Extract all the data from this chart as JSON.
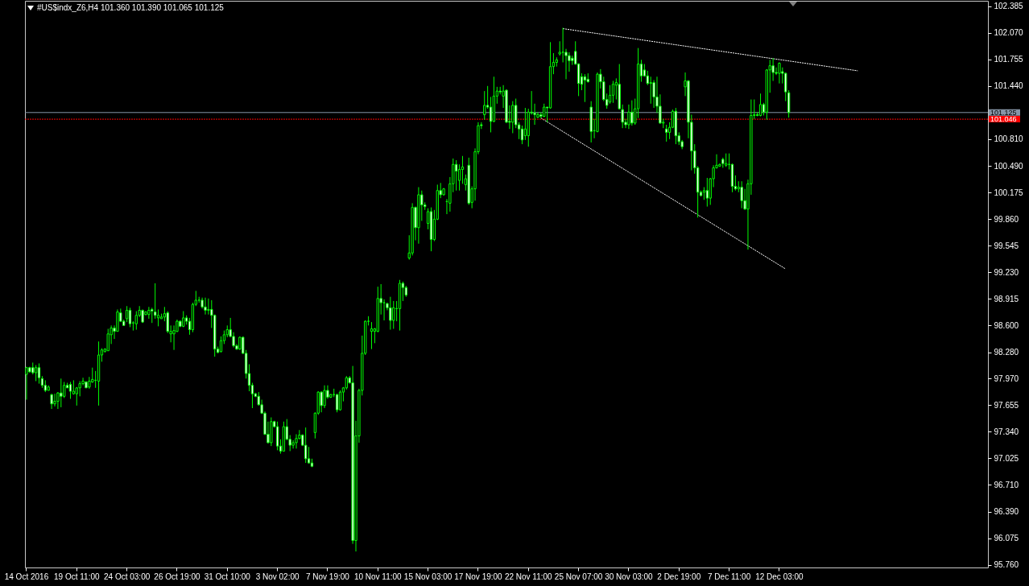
{
  "chart_data": {
    "type": "candlestick",
    "title": "#US$indx_Z6,H4  101.360 101.390 101.065 101.125",
    "color": "#00ff00",
    "categories": [
      "14 Oct 2016",
      null,
      null,
      null,
      null,
      null,
      null,
      null,
      null,
      null,
      null,
      null,
      null,
      null,
      null,
      null,
      "19 Oct 11:00",
      null,
      null,
      null,
      null,
      null,
      null,
      null,
      null,
      null,
      null,
      null,
      null,
      null,
      null,
      null,
      "24 Oct 03:00",
      null,
      null,
      null,
      null,
      null,
      null,
      null,
      null,
      null,
      null,
      null,
      null,
      null,
      null,
      null,
      "26 Oct 19:00",
      null,
      null,
      null,
      null,
      null,
      null,
      null,
      null,
      null,
      null,
      null,
      null,
      null,
      null,
      null,
      "31 Oct 10:00",
      null,
      null,
      null,
      null,
      null,
      null,
      null,
      null,
      null,
      null,
      null,
      null,
      null,
      null,
      null,
      "3 Nov 02:00",
      null,
      null,
      null,
      null,
      null,
      null,
      null,
      null,
      null,
      null,
      null,
      null,
      null,
      null,
      null,
      "7 Nov 19:00",
      null,
      null,
      null,
      null,
      null,
      null,
      null,
      null,
      null,
      null,
      null,
      null,
      null,
      null,
      null,
      "10 Nov 11:00",
      null,
      null,
      null,
      null,
      null,
      null,
      null,
      null,
      null,
      null,
      null,
      null,
      null,
      null,
      null,
      "15 Nov 03:00",
      null,
      null,
      null,
      null,
      null,
      null,
      null,
      null,
      null,
      null,
      null,
      null,
      null,
      null,
      null,
      "17 Nov 19:00",
      null,
      null,
      null,
      null,
      null,
      null,
      null,
      null,
      null,
      null,
      null,
      null,
      null,
      null,
      null,
      "22 Nov 11:00",
      null,
      null,
      null,
      null,
      null,
      null,
      null,
      null,
      null,
      null,
      null,
      null,
      null,
      null,
      null,
      "25 Nov 07:00",
      null,
      null,
      null,
      null,
      null,
      null,
      null,
      null,
      null,
      null,
      null,
      null,
      null,
      null,
      null,
      "30 Nov 03:00",
      null,
      null,
      null,
      null,
      null,
      null,
      null,
      null,
      null,
      null,
      null,
      null,
      null,
      null,
      null,
      "2 Dec 19:00",
      null,
      null,
      null,
      null,
      null,
      null,
      null,
      null,
      null,
      null,
      null,
      null,
      null,
      null,
      null,
      "7 Dec 11:00",
      null,
      null,
      null,
      null,
      null,
      null,
      null,
      null,
      null,
      null,
      null,
      null,
      null,
      null,
      null,
      "12 Dec 03:00",
      null,
      null,
      null,
      null,
      null,
      null,
      null,
      null,
      null,
      null,
      null,
      null,
      null,
      null,
      null,
      null,
      null,
      null,
      null,
      null,
      null,
      null,
      null,
      null,
      null,
      null,
      null,
      null,
      null,
      null,
      null,
      null,
      null,
      null,
      null,
      null,
      null,
      null,
      null,
      null,
      null,
      null,
      null,
      null,
      null,
      null,
      null,
      null,
      null,
      null,
      null,
      null,
      null,
      null,
      null,
      null,
      null,
      null,
      null,
      null,
      null,
      null,
      null,
      null,
      null,
      null
    ],
    "ohlc": [
      [
        98.02,
        98.11,
        97.72,
        98.1
      ],
      [
        98.1,
        98.11,
        98.04,
        98.05
      ],
      [
        98.1,
        98.16,
        98.02,
        98.04
      ],
      [
        98.04,
        98.13,
        97.94,
        98.1
      ],
      [
        98.1,
        98.15,
        97.91,
        97.98
      ],
      [
        97.97,
        98.0,
        97.86,
        97.89
      ],
      [
        97.89,
        97.95,
        97.81,
        97.83
      ],
      [
        97.83,
        97.89,
        97.83,
        97.87
      ],
      [
        97.78,
        97.79,
        97.61,
        97.67
      ],
      [
        97.67,
        97.79,
        97.64,
        97.7
      ],
      [
        97.7,
        97.81,
        97.61,
        97.8
      ],
      [
        97.8,
        97.97,
        97.63,
        97.76
      ],
      [
        97.76,
        97.93,
        97.74,
        97.89
      ],
      [
        97.89,
        97.92,
        97.86,
        97.86
      ],
      [
        97.9,
        97.93,
        97.73,
        97.82
      ],
      [
        97.79,
        97.95,
        97.78,
        97.82
      ],
      [
        97.79,
        97.87,
        97.65,
        97.86
      ],
      [
        97.86,
        97.94,
        97.76,
        97.91
      ],
      [
        97.91,
        97.98,
        97.89,
        97.94
      ],
      [
        97.93,
        97.94,
        97.86,
        97.86
      ],
      [
        97.87,
        97.99,
        97.85,
        97.94
      ],
      [
        97.93,
        98.1,
        97.92,
        97.96
      ],
      [
        97.95,
        98.06,
        97.86,
        97.95
      ],
      [
        97.94,
        98.41,
        97.65,
        98.25
      ],
      [
        98.25,
        98.33,
        98.17,
        98.31
      ],
      [
        98.29,
        98.33,
        98.28,
        98.32
      ],
      [
        98.3,
        98.56,
        98.3,
        98.5
      ],
      [
        98.49,
        98.6,
        98.38,
        98.57
      ],
      [
        98.57,
        98.6,
        98.44,
        98.53
      ],
      [
        98.53,
        98.79,
        98.53,
        98.76
      ],
      [
        98.75,
        98.8,
        98.64,
        98.65
      ],
      [
        98.65,
        98.67,
        98.6,
        98.6
      ],
      [
        98.68,
        98.83,
        98.64,
        98.78
      ],
      [
        98.78,
        98.81,
        98.58,
        98.62
      ],
      [
        98.63,
        98.65,
        98.54,
        98.63
      ],
      [
        98.62,
        98.77,
        98.55,
        98.72
      ],
      [
        98.72,
        98.83,
        98.7,
        98.78
      ],
      [
        98.78,
        98.79,
        98.63,
        98.64
      ],
      [
        98.73,
        98.77,
        98.72,
        98.76
      ],
      [
        98.73,
        98.82,
        98.68,
        98.78
      ],
      [
        98.79,
        98.81,
        98.63,
        98.77
      ],
      [
        98.76,
        99.1,
        98.68,
        98.72
      ],
      [
        98.69,
        98.79,
        98.59,
        98.72
      ],
      [
        98.68,
        98.74,
        98.68,
        98.7
      ],
      [
        98.7,
        98.82,
        98.65,
        98.74
      ],
      [
        98.75,
        98.77,
        98.51,
        98.53
      ],
      [
        98.5,
        98.6,
        98.4,
        98.53
      ],
      [
        98.5,
        98.6,
        98.31,
        98.54
      ],
      [
        98.53,
        98.67,
        98.52,
        98.65
      ],
      [
        98.65,
        98.66,
        98.58,
        98.59
      ],
      [
        98.59,
        98.77,
        98.58,
        98.69
      ],
      [
        98.69,
        98.72,
        98.61,
        98.65
      ],
      [
        98.65,
        98.69,
        98.49,
        98.55
      ],
      [
        98.55,
        98.87,
        98.52,
        98.85
      ],
      [
        98.85,
        99.01,
        98.83,
        98.9
      ],
      [
        98.9,
        98.94,
        98.87,
        98.9
      ],
      [
        98.9,
        98.93,
        98.8,
        98.82
      ],
      [
        98.82,
        98.93,
        98.73,
        98.78
      ],
      [
        98.78,
        98.92,
        98.73,
        98.79
      ],
      [
        98.79,
        98.9,
        98.57,
        98.72
      ],
      [
        98.72,
        98.73,
        98.23,
        98.32
      ],
      [
        98.32,
        98.35,
        98.27,
        98.28
      ],
      [
        98.29,
        98.47,
        98.28,
        98.42
      ],
      [
        98.42,
        98.54,
        98.38,
        98.49
      ],
      [
        98.49,
        98.6,
        98.46,
        98.55
      ],
      [
        98.55,
        98.69,
        98.46,
        98.47
      ],
      [
        98.47,
        98.52,
        98.34,
        98.36
      ],
      [
        98.36,
        98.38,
        98.31,
        98.32
      ],
      [
        98.32,
        98.47,
        98.31,
        98.46
      ],
      [
        98.46,
        98.47,
        98.26,
        98.27
      ],
      [
        98.27,
        98.31,
        97.97,
        98.03
      ],
      [
        98.03,
        98.14,
        97.82,
        97.89
      ],
      [
        97.89,
        97.92,
        97.62,
        97.79
      ],
      [
        97.79,
        97.8,
        97.75,
        97.76
      ],
      [
        97.76,
        97.81,
        97.65,
        97.66
      ],
      [
        97.66,
        97.72,
        97.55,
        97.56
      ],
      [
        97.56,
        97.58,
        97.3,
        97.31
      ],
      [
        97.31,
        97.46,
        97.2,
        97.21
      ],
      [
        97.21,
        97.51,
        97.17,
        97.46
      ],
      [
        97.46,
        97.47,
        97.39,
        97.4
      ],
      [
        97.4,
        97.46,
        97.12,
        97.17
      ],
      [
        97.17,
        97.25,
        97.08,
        97.11
      ],
      [
        97.11,
        97.46,
        97.11,
        97.4
      ],
      [
        97.4,
        97.49,
        97.24,
        97.25
      ],
      [
        97.25,
        97.3,
        97.11,
        97.18
      ],
      [
        97.18,
        97.24,
        97.14,
        97.21
      ],
      [
        97.21,
        97.31,
        97.14,
        97.26
      ],
      [
        97.26,
        97.36,
        97.25,
        97.3
      ],
      [
        97.3,
        97.31,
        97.17,
        97.18
      ],
      [
        97.18,
        97.39,
        96.97,
        97.02
      ],
      [
        97.02,
        97.16,
        96.96,
        96.97
      ],
      [
        96.97,
        97.02,
        96.92,
        96.93
      ],
      [
        97.33,
        97.57,
        97.26,
        97.56
      ],
      [
        97.56,
        97.82,
        97.54,
        97.81
      ],
      [
        97.81,
        97.82,
        97.57,
        97.65
      ],
      [
        97.65,
        97.89,
        97.62,
        97.83
      ],
      [
        97.83,
        97.89,
        97.73,
        97.75
      ],
      [
        97.75,
        97.79,
        97.74,
        97.78
      ],
      [
        97.78,
        97.85,
        97.75,
        97.78
      ],
      [
        97.78,
        97.79,
        97.57,
        97.6
      ],
      [
        97.6,
        97.83,
        97.59,
        97.81
      ],
      [
        97.81,
        97.87,
        97.7,
        97.86
      ],
      [
        97.86,
        98.0,
        97.84,
        97.98
      ],
      [
        97.98,
        98.0,
        97.91,
        97.92
      ],
      [
        97.92,
        98.12,
        96.01,
        96.05
      ],
      [
        96.05,
        97.47,
        95.92,
        97.29
      ],
      [
        97.29,
        97.85,
        97.21,
        97.83
      ],
      [
        97.83,
        98.48,
        97.77,
        98.27
      ],
      [
        98.27,
        98.66,
        98.25,
        98.65
      ],
      [
        98.65,
        98.71,
        98.6,
        98.65
      ],
      [
        98.53,
        98.64,
        98.32,
        98.56
      ],
      [
        98.53,
        98.57,
        98.39,
        98.56
      ],
      [
        98.53,
        99.06,
        98.52,
        98.92
      ],
      [
        98.92,
        99.09,
        98.73,
        98.87
      ],
      [
        98.87,
        98.91,
        98.66,
        98.87
      ],
      [
        98.86,
        98.87,
        98.78,
        98.81
      ],
      [
        98.81,
        98.94,
        98.55,
        98.66
      ],
      [
        98.66,
        98.89,
        98.56,
        98.81
      ],
      [
        98.8,
        98.89,
        98.65,
        98.8
      ],
      [
        98.8,
        99.14,
        98.54,
        99.1
      ],
      [
        99.1,
        99.12,
        98.89,
        99.05
      ],
      [
        99.05,
        99.07,
        98.94,
        98.96
      ],
      [
        99.4,
        99.67,
        99.38,
        99.46
      ],
      [
        99.46,
        100.05,
        99.43,
        100.0
      ],
      [
        100.0,
        100.01,
        99.61,
        99.76
      ],
      [
        99.76,
        100.24,
        99.57,
        100.15
      ],
      [
        100.15,
        100.2,
        99.84,
        100.03
      ],
      [
        100.03,
        100.06,
        99.97,
        100.01
      ],
      [
        99.81,
        99.99,
        99.74,
        99.95
      ],
      [
        99.95,
        100.0,
        99.48,
        99.62
      ],
      [
        99.62,
        99.97,
        99.6,
        99.86
      ],
      [
        99.86,
        100.27,
        99.85,
        100.2
      ],
      [
        100.2,
        100.29,
        100.11,
        100.15
      ],
      [
        100.15,
        100.23,
        100.14,
        100.22
      ],
      [
        100.07,
        100.1,
        99.92,
        100.07
      ],
      [
        100.05,
        100.36,
        99.95,
        100.28
      ],
      [
        100.28,
        100.58,
        100.18,
        100.51
      ],
      [
        100.51,
        100.56,
        100.2,
        100.43
      ],
      [
        100.32,
        100.51,
        100.2,
        100.45
      ],
      [
        100.45,
        100.61,
        100.28,
        100.48
      ],
      [
        100.27,
        100.39,
        100.2,
        100.34
      ],
      [
        100.5,
        100.59,
        100.03,
        100.05
      ],
      [
        100.06,
        100.25,
        99.99,
        100.22
      ],
      [
        100.22,
        100.7,
        100.08,
        100.66
      ],
      [
        100.66,
        101.01,
        100.63,
        100.97
      ],
      [
        100.98,
        101.01,
        100.93,
        100.97
      ],
      [
        101.1,
        101.38,
        101.04,
        101.21
      ],
      [
        101.21,
        101.44,
        101.17,
        101.19
      ],
      [
        101.19,
        101.31,
        100.89,
        101.02
      ],
      [
        101.02,
        101.55,
        101.01,
        101.32
      ],
      [
        101.32,
        101.43,
        101.23,
        101.38
      ],
      [
        101.38,
        101.43,
        101.34,
        101.37
      ],
      [
        101.32,
        101.45,
        101.18,
        101.38
      ],
      [
        101.39,
        101.4,
        101.0,
        101.01
      ],
      [
        101.02,
        101.21,
        100.93,
        101.01
      ],
      [
        101.01,
        101.26,
        100.88,
        101.21
      ],
      [
        101.21,
        101.29,
        100.94,
        100.98
      ],
      [
        100.98,
        101.01,
        100.81,
        100.93
      ],
      [
        100.93,
        100.97,
        100.75,
        100.8
      ],
      [
        100.85,
        101.18,
        100.8,
        100.93
      ],
      [
        100.85,
        101.17,
        100.72,
        101.13
      ],
      [
        101.13,
        101.38,
        101.1,
        101.12
      ],
      [
        101.12,
        101.23,
        100.98,
        101.1
      ],
      [
        101.07,
        101.13,
        101.06,
        101.1
      ],
      [
        101.1,
        101.13,
        101.06,
        101.08
      ],
      [
        101.08,
        101.23,
        101.07,
        101.19
      ],
      [
        101.19,
        101.19,
        101.01,
        101.18
      ],
      [
        101.18,
        101.96,
        101.17,
        101.67
      ],
      [
        101.67,
        101.83,
        101.58,
        101.72
      ],
      [
        101.72,
        101.78,
        101.67,
        101.75
      ],
      [
        101.82,
        101.97,
        101.8,
        101.84
      ],
      [
        101.84,
        102.13,
        101.72,
        101.84
      ],
      [
        101.84,
        101.88,
        101.52,
        101.8
      ],
      [
        101.8,
        101.84,
        101.61,
        101.74
      ],
      [
        101.77,
        101.8,
        101.69,
        101.74
      ],
      [
        101.85,
        101.97,
        101.69,
        101.7
      ],
      [
        101.7,
        101.71,
        101.32,
        101.47
      ],
      [
        101.55,
        101.59,
        101.39,
        101.46
      ],
      [
        101.55,
        101.58,
        101.25,
        101.51
      ],
      [
        101.52,
        101.59,
        101.48,
        101.49
      ],
      [
        101.19,
        101.26,
        100.77,
        100.9
      ],
      [
        100.91,
        101.05,
        100.82,
        100.91
      ],
      [
        100.9,
        101.6,
        100.89,
        101.58
      ],
      [
        101.58,
        101.64,
        101.41,
        101.49
      ],
      [
        101.49,
        101.55,
        101.26,
        101.28
      ],
      [
        101.28,
        101.35,
        101.17,
        101.21
      ],
      [
        101.25,
        101.45,
        101.23,
        101.33
      ],
      [
        101.33,
        101.5,
        101.24,
        101.46
      ],
      [
        101.45,
        101.53,
        101.28,
        101.48
      ],
      [
        101.46,
        101.7,
        101.16,
        101.17
      ],
      [
        101.16,
        101.22,
        100.94,
        101.01
      ],
      [
        101.01,
        101.05,
        100.94,
        100.98
      ],
      [
        100.98,
        101.22,
        100.93,
        101.13
      ],
      [
        101.13,
        101.27,
        100.97,
        101.0
      ],
      [
        101.0,
        101.29,
        100.98,
        101.17
      ],
      [
        101.17,
        101.89,
        101.06,
        101.7
      ],
      [
        101.7,
        101.75,
        101.49,
        101.56
      ],
      [
        101.63,
        101.7,
        101.55,
        101.56
      ],
      [
        101.56,
        101.62,
        101.45,
        101.47
      ],
      [
        101.47,
        101.55,
        101.23,
        101.48
      ],
      [
        101.48,
        101.51,
        101.18,
        101.31
      ],
      [
        101.31,
        101.55,
        101.12,
        101.2
      ],
      [
        101.2,
        101.34,
        100.99,
        101.0
      ],
      [
        101.0,
        101.05,
        100.94,
        101.01
      ],
      [
        100.93,
        100.98,
        100.78,
        100.89
      ],
      [
        100.89,
        101.01,
        100.81,
        100.95
      ],
      [
        100.95,
        101.16,
        100.94,
        101.14
      ],
      [
        101.14,
        101.18,
        100.75,
        100.85
      ],
      [
        100.85,
        100.89,
        100.74,
        100.78
      ],
      [
        100.78,
        100.8,
        100.69,
        100.72
      ],
      [
        101.43,
        101.6,
        101.32,
        101.5
      ],
      [
        101.5,
        101.51,
        100.82,
        101.01
      ],
      [
        101.01,
        101.1,
        100.44,
        100.67
      ],
      [
        100.67,
        100.75,
        100.4,
        100.47
      ],
      [
        100.47,
        100.49,
        99.88,
        100.18
      ],
      [
        100.18,
        100.2,
        100.13,
        100.14
      ],
      [
        100.18,
        100.24,
        100.09,
        100.2
      ],
      [
        100.2,
        100.35,
        100.01,
        100.11
      ],
      [
        100.11,
        100.35,
        100.03,
        100.34
      ],
      [
        100.34,
        100.5,
        100.24,
        100.47
      ],
      [
        100.47,
        100.63,
        100.46,
        100.5
      ],
      [
        100.49,
        100.52,
        100.48,
        100.51
      ],
      [
        100.57,
        100.59,
        100.47,
        100.52
      ],
      [
        100.5,
        100.64,
        100.48,
        100.52
      ],
      [
        100.51,
        100.64,
        100.45,
        100.51
      ],
      [
        100.51,
        100.52,
        100.18,
        100.25
      ],
      [
        100.25,
        100.38,
        100.2,
        100.22
      ],
      [
        100.22,
        100.31,
        100.18,
        100.24
      ],
      [
        100.24,
        100.31,
        99.99,
        100.08
      ],
      [
        100.08,
        100.22,
        99.97,
        99.98
      ],
      [
        99.98,
        100.33,
        99.5,
        100.28
      ],
      [
        100.28,
        101.28,
        100.15,
        101.09
      ],
      [
        101.09,
        101.28,
        101.05,
        101.1
      ],
      [
        101.1,
        101.13,
        101.08,
        101.09
      ],
      [
        101.09,
        101.35,
        101.08,
        101.22
      ],
      [
        101.22,
        101.24,
        101.09,
        101.13
      ],
      [
        101.13,
        101.64,
        101.04,
        101.63
      ],
      [
        101.63,
        101.75,
        101.36,
        101.68
      ],
      [
        101.68,
        101.77,
        101.5,
        101.6
      ],
      [
        101.6,
        101.66,
        101.57,
        101.59
      ],
      [
        101.59,
        101.72,
        101.47,
        101.71
      ],
      [
        101.61,
        101.66,
        101.47,
        101.59
      ],
      [
        101.59,
        101.6,
        101.26,
        101.37
      ],
      [
        101.36,
        101.39,
        101.065,
        101.125
      ],
      null,
      null,
      null,
      null,
      null,
      null,
      null,
      null,
      null,
      null,
      null,
      null,
      null,
      null,
      null,
      null,
      null,
      null,
      null,
      null,
      null,
      null,
      null,
      null,
      null,
      null,
      null,
      null,
      null,
      null,
      null,
      null,
      null,
      null,
      null,
      null,
      null,
      null,
      null,
      null,
      null,
      null,
      null,
      null,
      null,
      null,
      null,
      null,
      null,
      null,
      null,
      null,
      null,
      null,
      null,
      null,
      null,
      null,
      null,
      null,
      null,
      null,
      null
    ],
    "series": [
      {
        "type": "line",
        "color": "#ffffff",
        "line_style": "dashed",
        "values": [
          null,
          null,
          null,
          null,
          null,
          null,
          null,
          null,
          null,
          null,
          null,
          null,
          null,
          null,
          null,
          null,
          null,
          null,
          null,
          null,
          null,
          null,
          null,
          null,
          null,
          null,
          null,
          null,
          null,
          null,
          null,
          null,
          null,
          null,
          null,
          null,
          null,
          null,
          null,
          null,
          null,
          null,
          null,
          null,
          null,
          null,
          null,
          null,
          null,
          null,
          null,
          null,
          null,
          null,
          null,
          null,
          null,
          null,
          null,
          null,
          null,
          null,
          null,
          null,
          null,
          null,
          null,
          null,
          null,
          null,
          null,
          null,
          null,
          null,
          null,
          null,
          null,
          null,
          null,
          null,
          null,
          null,
          null,
          null,
          null,
          null,
          null,
          null,
          null,
          null,
          null,
          null,
          null,
          null,
          null,
          null,
          null,
          null,
          null,
          null,
          null,
          null,
          null,
          null,
          null,
          null,
          null,
          null,
          null,
          null,
          null,
          null,
          null,
          null,
          null,
          null,
          null,
          null,
          null,
          null,
          null,
          null,
          null,
          null,
          null,
          null,
          null,
          null,
          null,
          null,
          null,
          null,
          null,
          null,
          null,
          null,
          null,
          null,
          null,
          null,
          null,
          null,
          null,
          null,
          null,
          null,
          null,
          null,
          null,
          null,
          null,
          null,
          null,
          null,
          null,
          null,
          null,
          null,
          null,
          null,
          null,
          null,
          null,
          null,
          null,
          null,
          null,
          null,
          null,
          null,
          null,
          102.12,
          null,
          null,
          null,
          null,
          null,
          null,
          null,
          null,
          null,
          null,
          null,
          null,
          null,
          null,
          null,
          null,
          null,
          null,
          null,
          null,
          null,
          null,
          null,
          null,
          null,
          null,
          null,
          null,
          null,
          null,
          null,
          null,
          null,
          null,
          null,
          null,
          null,
          null,
          null,
          null,
          null,
          null,
          null,
          null,
          null,
          null,
          null,
          null,
          null,
          null,
          null,
          null,
          null,
          null,
          null,
          null,
          null,
          null,
          null,
          null,
          null,
          null,
          null,
          null,
          null,
          null,
          null,
          null,
          null,
          null,
          null,
          null,
          null,
          null,
          null,
          null,
          null,
          null,
          null,
          null,
          null,
          null,
          null,
          null,
          null,
          null,
          null,
          null,
          null,
          null,
          null,
          null,
          null,
          101.62,
          null,
          null,
          null,
          null,
          null,
          null,
          null,
          null,
          null,
          null,
          null,
          null,
          null,
          null,
          null,
          null,
          null,
          null,
          null,
          null,
          null,
          null,
          null,
          null,
          null,
          null,
          null,
          null,
          null,
          null,
          null,
          null,
          null,
          null,
          null,
          null,
          null,
          null,
          null,
          null,
          null
        ]
      },
      {
        "type": "line",
        "color": "#ffffff",
        "line_style": "dashed",
        "values": [
          null,
          null,
          null,
          null,
          null,
          null,
          null,
          null,
          null,
          null,
          null,
          null,
          null,
          null,
          null,
          null,
          null,
          null,
          null,
          null,
          null,
          null,
          null,
          null,
          null,
          null,
          null,
          null,
          null,
          null,
          null,
          null,
          null,
          null,
          null,
          null,
          null,
          null,
          null,
          null,
          null,
          null,
          null,
          null,
          null,
          null,
          null,
          null,
          null,
          null,
          null,
          null,
          null,
          null,
          null,
          null,
          null,
          null,
          null,
          null,
          null,
          null,
          null,
          null,
          null,
          null,
          null,
          null,
          null,
          null,
          null,
          null,
          null,
          null,
          null,
          null,
          null,
          null,
          null,
          null,
          null,
          null,
          null,
          null,
          null,
          null,
          null,
          null,
          null,
          null,
          null,
          null,
          null,
          null,
          null,
          null,
          null,
          null,
          null,
          null,
          null,
          null,
          null,
          null,
          null,
          null,
          null,
          null,
          null,
          null,
          null,
          null,
          null,
          null,
          null,
          null,
          null,
          null,
          null,
          null,
          null,
          null,
          null,
          null,
          null,
          null,
          null,
          null,
          null,
          null,
          null,
          null,
          null,
          null,
          null,
          null,
          null,
          null,
          null,
          null,
          null,
          null,
          null,
          null,
          null,
          null,
          null,
          null,
          null,
          null,
          null,
          null,
          null,
          null,
          null,
          null,
          null,
          null,
          null,
          null,
          null,
          null,
          null,
          null,
          101.06,
          null,
          null,
          null,
          null,
          null,
          null,
          null,
          null,
          null,
          null,
          null,
          null,
          null,
          null,
          null,
          null,
          null,
          null,
          null,
          null,
          null,
          null,
          null,
          null,
          null,
          null,
          null,
          null,
          null,
          null,
          null,
          null,
          null,
          null,
          null,
          null,
          null,
          null,
          null,
          null,
          null,
          null,
          null,
          null,
          null,
          null,
          null,
          null,
          null,
          null,
          null,
          null,
          null,
          null,
          null,
          null,
          null,
          null,
          null,
          null,
          null,
          null,
          null,
          null,
          null,
          null,
          null,
          null,
          null,
          null,
          null,
          null,
          null,
          null,
          null,
          null,
          null,
          99.27,
          null,
          null,
          null,
          null,
          null,
          null,
          null,
          null,
          null,
          null,
          null,
          null,
          null,
          null,
          null,
          null,
          null,
          null,
          null,
          null,
          null,
          null,
          null,
          null,
          null,
          null,
          null,
          null,
          null,
          null,
          null,
          null,
          null,
          null,
          null,
          null,
          null,
          null,
          null,
          null,
          null,
          null,
          null,
          null,
          null,
          null,
          null,
          null,
          null,
          null,
          null,
          null,
          null,
          null,
          null,
          null,
          null,
          null,
          null,
          null,
          null,
          null,
          null,
          null
        ]
      }
    ],
    "ylim": [
      95.73,
      102.45
    ],
    "yticks": [
      {
        "value": 95.76,
        "label": "95.760"
      },
      96.075,
      {
        "value": 96.39,
        "label": "96.390"
      },
      {
        "value": 96.71,
        "label": "96.710"
      },
      97.025,
      {
        "value": 97.34,
        "label": "97.340"
      },
      97.655,
      {
        "value": 97.97,
        "label": "97.970"
      },
      {
        "value": 98.28,
        "label": "98.280"
      },
      {
        "value": 98.6,
        "label": "98.600"
      },
      98.915,
      {
        "value": 99.23,
        "label": "99.230"
      },
      99.545,
      {
        "value": 99.86,
        "label": "99.860"
      },
      100.175,
      {
        "value": 100.49,
        "label": "100.490"
      },
      {
        "value": 100.81,
        "label": "100.810"
      },
      {
        "value": 101.44,
        "label": "101.440"
      },
      101.755,
      {
        "value": 102.07,
        "label": "102.070"
      },
      102.385
    ],
    "ref_lines": [
      {
        "axis": "y",
        "value": 101.125,
        "label": "101.125",
        "color": "#8796a8"
      },
      {
        "axis": "y",
        "value": 101.046,
        "label": "101.046",
        "color": "#ff0000",
        "line_style": "dashed"
      }
    ]
  }
}
